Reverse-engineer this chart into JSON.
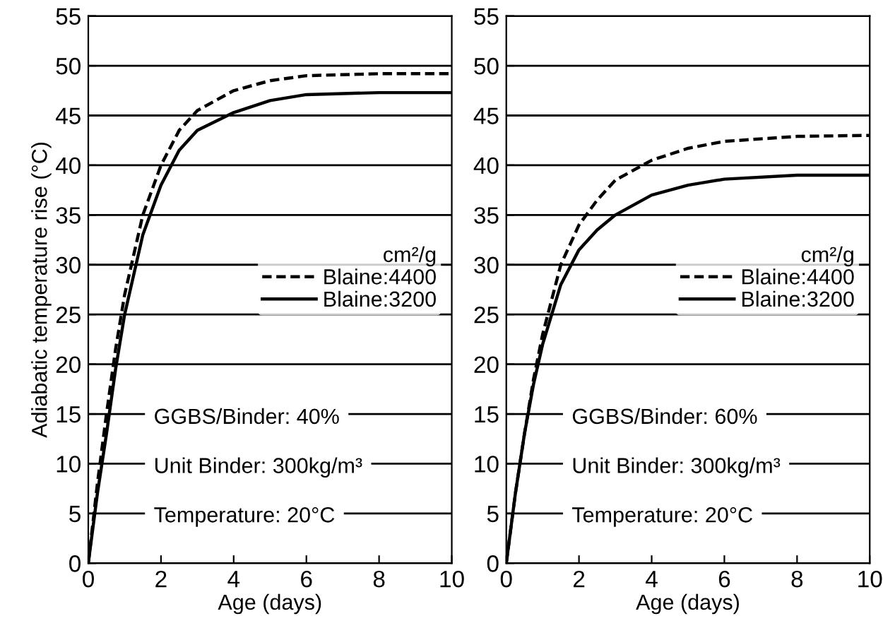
{
  "chart_data": [
    {
      "type": "line",
      "ylabel": "Adiabatic temperature rise (°C)",
      "xlabel": "Age (days)",
      "legend_title": "cm²/g",
      "legend": "right",
      "grid": "y",
      "marker": "none",
      "x": [
        0,
        0.25,
        0.5,
        0.75,
        1,
        1.5,
        2,
        2.5,
        3,
        4,
        5,
        6,
        8,
        10
      ],
      "series": [
        {
          "name": "Blaine:4400",
          "color": "#000000",
          "line_style": "dashed",
          "values": [
            0,
            8,
            15,
            21.5,
            27,
            35,
            40,
            43.5,
            45.5,
            47.5,
            48.5,
            49,
            49.2,
            49.2
          ]
        },
        {
          "name": "Blaine:3200",
          "color": "#000000",
          "line_style": "solid",
          "values": [
            0,
            7,
            13,
            19.5,
            25,
            33,
            38,
            41.5,
            43.5,
            45.3,
            46.5,
            47.1,
            47.3,
            47.3
          ]
        }
      ],
      "xlim": [
        0,
        10
      ],
      "xticks": [
        0,
        2,
        4,
        6,
        8,
        10
      ],
      "ylim": [
        0,
        55
      ],
      "yticks": [
        0,
        5,
        10,
        15,
        20,
        25,
        30,
        35,
        40,
        45,
        50,
        55
      ],
      "annotations": [
        "GGBS/Binder: 40%",
        "Unit Binder: 300kg/m³",
        "Temperature: 20°C"
      ]
    },
    {
      "type": "line",
      "xlabel": "Age (days)",
      "legend_title": "cm²/g",
      "legend": "right",
      "grid": "y",
      "marker": "none",
      "x": [
        0,
        0.25,
        0.5,
        0.75,
        1,
        1.5,
        2,
        2.5,
        3,
        4,
        5,
        6,
        8,
        10
      ],
      "series": [
        {
          "name": "Blaine:4400",
          "color": "#000000",
          "line_style": "dashed",
          "values": [
            0,
            7,
            13,
            18.5,
            23,
            30,
            34,
            36.5,
            38.5,
            40.5,
            41.7,
            42.4,
            42.9,
            43
          ]
        },
        {
          "name": "Blaine:3200",
          "color": "#000000",
          "line_style": "solid",
          "values": [
            0,
            7,
            13,
            18,
            22,
            28,
            31.5,
            33.5,
            35,
            37,
            38,
            38.6,
            39,
            39
          ]
        }
      ],
      "xlim": [
        0,
        10
      ],
      "xticks": [
        0,
        2,
        4,
        6,
        8,
        10
      ],
      "ylim": [
        0,
        55
      ],
      "yticks": [
        0,
        5,
        10,
        15,
        20,
        25,
        30,
        35,
        40,
        45,
        50,
        55
      ],
      "annotations": [
        "GGBS/Binder: 60%",
        "Unit Binder: 300kg/m³",
        "Temperature: 20°C"
      ]
    }
  ]
}
